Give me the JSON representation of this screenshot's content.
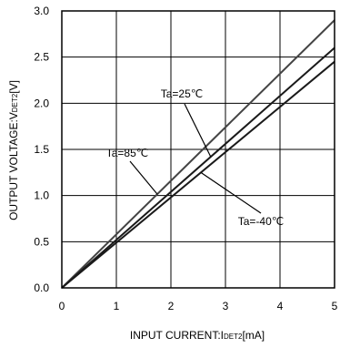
{
  "chart_data": {
    "type": "line",
    "xlabel": {
      "main": "INPUT CURRENT:I",
      "sub": "DET2",
      "unit": "[mA]"
    },
    "ylabel": {
      "main": "OUTPUT VOLTAGE:V",
      "sub": "DET2",
      "unit": "[V]"
    },
    "xlim": [
      0,
      5
    ],
    "ylim": [
      0,
      3.0
    ],
    "x_ticks": [
      "0",
      "1",
      "2",
      "3",
      "4",
      "5"
    ],
    "y_ticks": [
      "0.0",
      "0.5",
      "1.0",
      "1.5",
      "2.0",
      "2.5",
      "3.0"
    ],
    "grid": true,
    "series": [
      {
        "name": "Ta=85℃",
        "x": [
          0,
          5
        ],
        "y": [
          0,
          2.9
        ],
        "color": "#444444"
      },
      {
        "name": "Ta=25℃",
        "x": [
          0,
          5
        ],
        "y": [
          0,
          2.6
        ],
        "color": "#1a1a1a"
      },
      {
        "name": "Ta=-40℃",
        "x": [
          0,
          5
        ],
        "y": [
          0,
          2.45
        ],
        "color": "#1a1a1a"
      }
    ],
    "annotations": [
      {
        "text": "Ta=25℃",
        "target_series": 1
      },
      {
        "text": "Ta=85℃",
        "target_series": 0
      },
      {
        "text": "Ta=-40℃",
        "target_series": 2
      }
    ]
  }
}
